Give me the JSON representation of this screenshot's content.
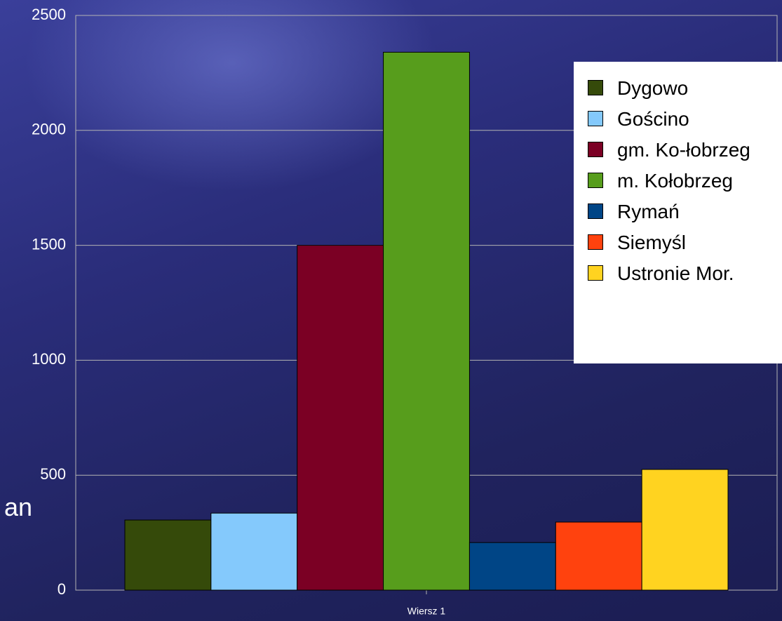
{
  "slide_text": "an",
  "chart_data": {
    "type": "bar",
    "categories": [
      "Wiersz 1"
    ],
    "series": [
      {
        "name": "Dygowo",
        "color": "#354a0a",
        "values": [
          305
        ]
      },
      {
        "name": "Gościno",
        "color": "#84c9fc",
        "values": [
          335
        ]
      },
      {
        "name": "gm. Ko-łobrzeg",
        "color": "#7b0024",
        "values": [
          1500
        ]
      },
      {
        "name": "m. Kołobrzeg",
        "color": "#579d1c",
        "values": [
          2340
        ]
      },
      {
        "name": "Rymań",
        "color": "#004586",
        "values": [
          207
        ]
      },
      {
        "name": "Siemyśl",
        "color": "#ff420e",
        "values": [
          296
        ]
      },
      {
        "name": "Ustronie Mor.",
        "color": "#ffd320",
        "values": [
          525
        ]
      }
    ],
    "ylim": [
      0,
      2500
    ],
    "yticks": [
      0,
      500,
      1000,
      1500,
      2000,
      2500
    ],
    "grid": true,
    "legend": "right"
  }
}
